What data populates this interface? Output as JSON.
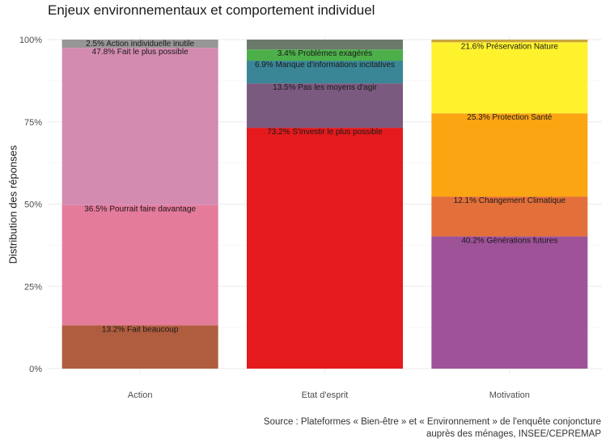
{
  "chart_data": {
    "type": "bar",
    "stacked": true,
    "normalized": true,
    "title": "Enjeux environnementaux et comportement individuel",
    "xlabel": "",
    "ylabel": "Distribution des réponses",
    "ylim": [
      0,
      1
    ],
    "yticks": [
      "0%",
      "25%",
      "50%",
      "75%",
      "100%"
    ],
    "categories": [
      "Action",
      "Etat d'esprit",
      "Motivation"
    ],
    "bars": [
      {
        "category": "Action",
        "segments": [
          {
            "label": "13.2% Fait beaucoup",
            "value": 0.132,
            "color": "#b05d3f"
          },
          {
            "label": "36.5% Pourrait faire davantage",
            "value": 0.365,
            "color": "#e57b9b"
          },
          {
            "label": "47.8% Fait le plus possible",
            "value": 0.478,
            "color": "#d48bb0"
          },
          {
            "label": "2.5% Action individuelle inutile",
            "value": 0.025,
            "color": "#969696"
          }
        ]
      },
      {
        "category": "Etat d'esprit",
        "segments": [
          {
            "label": "73.2% S'investir le plus possible",
            "value": 0.732,
            "color": "#e41a1c"
          },
          {
            "label": "13.5% Pas les moyens d'agir",
            "value": 0.135,
            "color": "#7b5a80"
          },
          {
            "label": "6.9% Manque d'informations incitatives",
            "value": 0.069,
            "color": "#3a8696"
          },
          {
            "label": "3.4% Problèmes exagérés",
            "value": 0.034,
            "color": "#4daf4a"
          },
          {
            "label": "",
            "value": 0.03,
            "color": "#6b7a6b"
          }
        ]
      },
      {
        "category": "Motivation",
        "segments": [
          {
            "label": "40.2% Générations futures",
            "value": 0.402,
            "color": "#9e5298"
          },
          {
            "label": "12.1% Changement Climatique",
            "value": 0.121,
            "color": "#e36f3a"
          },
          {
            "label": "25.3% Protection Santé",
            "value": 0.253,
            "color": "#fca512"
          },
          {
            "label": "21.6% Préservation Nature",
            "value": 0.216,
            "color": "#fef22d"
          },
          {
            "label": "",
            "value": 0.008,
            "color": "#c9a63a"
          }
        ]
      }
    ],
    "source_lines": [
      "Source : Plateformes « Bien-être » et « Environnement » de l'enquête conjoncture",
      "auprès des ménages, INSEE/CEPREMAP"
    ]
  }
}
